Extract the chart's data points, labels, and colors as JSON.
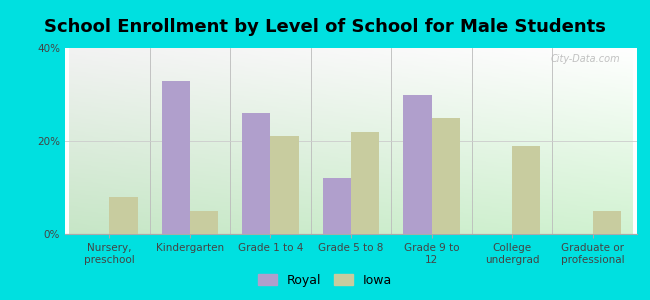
{
  "title": "School Enrollment by Level of School for Male Students",
  "categories": [
    "Nursery,\npreschool",
    "Kindergarten",
    "Grade 1 to 4",
    "Grade 5 to 8",
    "Grade 9 to\n12",
    "College\nundergrad",
    "Graduate or\nprofessional"
  ],
  "royal_values": [
    0,
    33,
    26,
    12,
    30,
    0,
    0
  ],
  "iowa_values": [
    8,
    5,
    21,
    22,
    25,
    19,
    5
  ],
  "royal_color": "#b09fcc",
  "iowa_color": "#c8cc9f",
  "background_color": "#00e0e0",
  "ylim": [
    0,
    40
  ],
  "yticks": [
    0,
    20,
    40
  ],
  "ytick_labels": [
    "0%",
    "20%",
    "40%"
  ],
  "bar_width": 0.35,
  "title_fontsize": 13,
  "tick_fontsize": 7.5,
  "legend_labels": [
    "Royal",
    "Iowa"
  ],
  "watermark": "City-Data.com"
}
